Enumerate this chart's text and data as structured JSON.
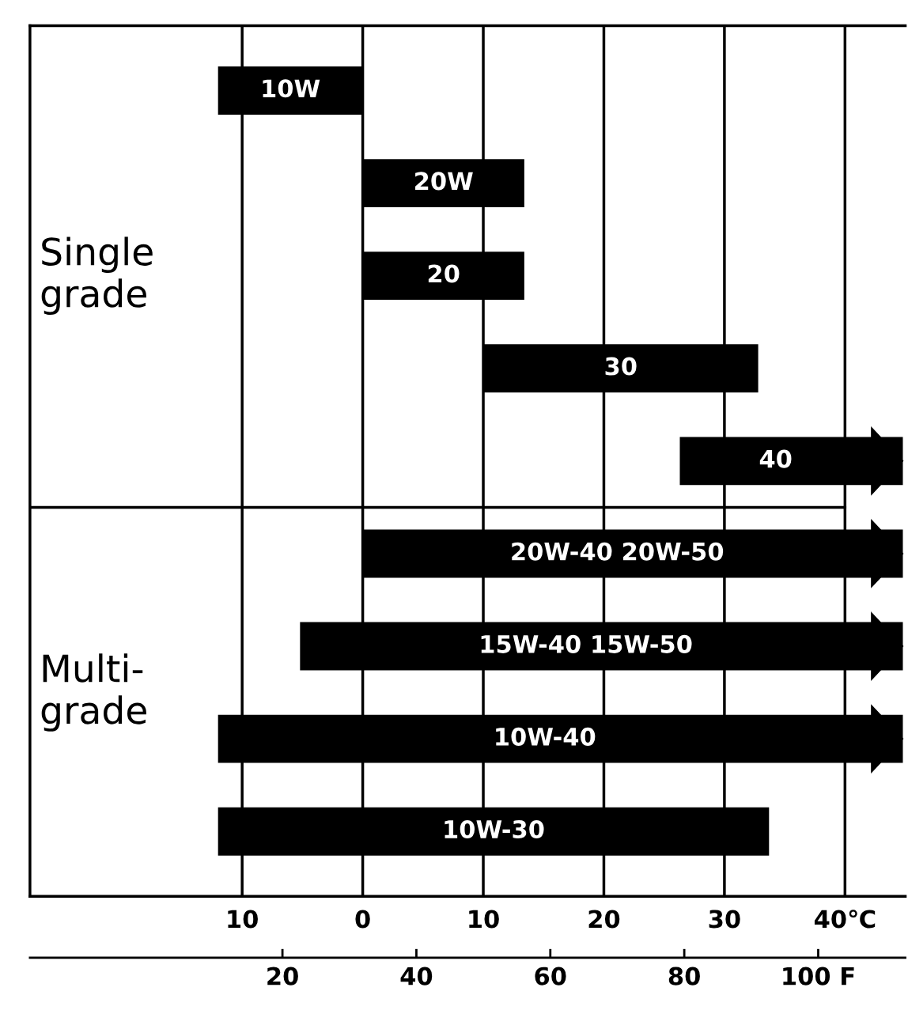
{
  "chart_data": {
    "type": "bar",
    "orientation": "horizontal",
    "categories": [
      "10W",
      "20W",
      "20",
      "30",
      "40",
      "20W-40 20W-50",
      "15W-40 15W-50",
      "10W-40",
      "10W-30"
    ],
    "base": [
      -12,
      0,
      0,
      10,
      26.3,
      0,
      -5.2,
      -12,
      -12
    ],
    "values": [
      12,
      13.4,
      13.4,
      22.8,
      18.5,
      44.8,
      50,
      56.8,
      45.7
    ],
    "color": "#000000",
    "xlim": [
      -27.6,
      45
    ],
    "xticks": [
      {
        "value": -10,
        "label": "10"
      },
      0,
      10,
      20,
      30,
      {
        "value": 40,
        "label": "40℃"
      }
    ],
    "x2lim": [
      -17.7,
      113
    ],
    "x2ticks": [
      20,
      40,
      60,
      80,
      {
        "value": 100,
        "label": "100 F"
      }
    ],
    "grid": "x",
    "tick_labels": "x",
    "annotations": [
      "Single\ngrade",
      "Multi-\ngrade"
    ]
  }
}
